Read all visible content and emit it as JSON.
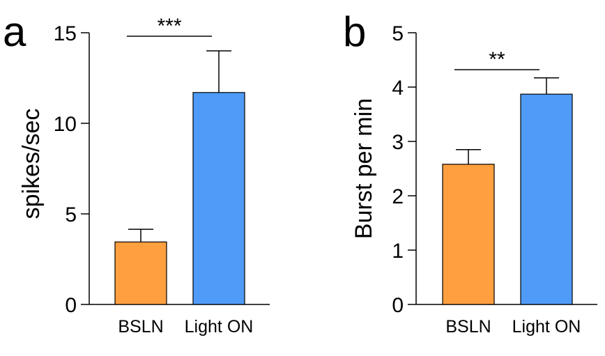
{
  "chart_data": [
    {
      "panel": "a",
      "type": "bar",
      "ylabel": "spikes/sec",
      "ylim": [
        0,
        15
      ],
      "yticks": [
        0,
        5,
        10,
        15
      ],
      "categories": [
        "BSLN",
        "Light ON"
      ],
      "values": [
        3.45,
        11.7
      ],
      "errors": [
        0.7,
        2.3
      ],
      "colors": [
        "#FF9F40",
        "#4F9BF7"
      ],
      "significance": "***"
    },
    {
      "panel": "b",
      "type": "bar",
      "ylabel": "Burst per min",
      "ylim": [
        0,
        5
      ],
      "yticks": [
        0,
        1,
        2,
        3,
        4,
        5
      ],
      "categories": [
        "BSLN",
        "Light ON"
      ],
      "values": [
        2.58,
        3.87
      ],
      "errors": [
        0.27,
        0.3
      ],
      "colors": [
        "#FF9F40",
        "#4F9BF7"
      ],
      "significance": "**"
    }
  ]
}
